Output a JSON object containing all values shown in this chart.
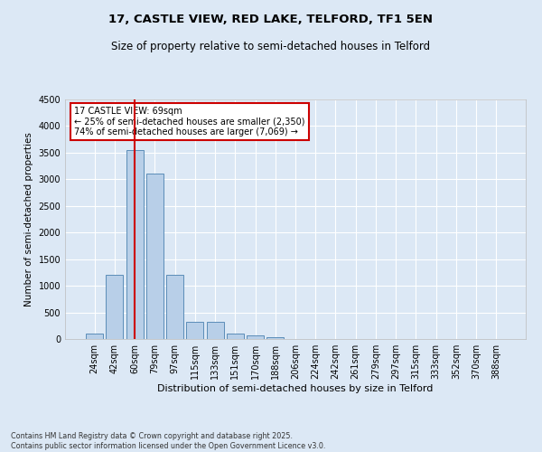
{
  "title_line1": "17, CASTLE VIEW, RED LAKE, TELFORD, TF1 5EN",
  "title_line2": "Size of property relative to semi-detached houses in Telford",
  "xlabel": "Distribution of semi-detached houses by size in Telford",
  "ylabel": "Number of semi-detached properties",
  "categories": [
    "24sqm",
    "42sqm",
    "60sqm",
    "79sqm",
    "97sqm",
    "115sqm",
    "133sqm",
    "151sqm",
    "170sqm",
    "188sqm",
    "206sqm",
    "224sqm",
    "242sqm",
    "261sqm",
    "279sqm",
    "297sqm",
    "315sqm",
    "333sqm",
    "352sqm",
    "370sqm",
    "388sqm"
  ],
  "values": [
    100,
    1200,
    3550,
    3100,
    1200,
    330,
    330,
    110,
    75,
    30,
    5,
    0,
    0,
    0,
    0,
    0,
    0,
    0,
    0,
    0,
    0
  ],
  "bar_color": "#b8cfe8",
  "bar_edge_color": "#5b8db8",
  "vline_x_index": 2,
  "vline_color": "#cc0000",
  "annotation_text": "17 CASTLE VIEW: 69sqm\n← 25% of semi-detached houses are smaller (2,350)\n74% of semi-detached houses are larger (7,069) →",
  "annotation_box_color": "#ffffff",
  "annotation_box_edge": "#cc0000",
  "ylim": [
    0,
    4500
  ],
  "yticks": [
    0,
    500,
    1000,
    1500,
    2000,
    2500,
    3000,
    3500,
    4000,
    4500
  ],
  "footer_line1": "Contains HM Land Registry data © Crown copyright and database right 2025.",
  "footer_line2": "Contains public sector information licensed under the Open Government Licence v3.0.",
  "bg_color": "#dce8f5",
  "plot_bg_color": "#dce8f5",
  "title1_fontsize": 9.5,
  "title2_fontsize": 8.5,
  "xlabel_fontsize": 8,
  "ylabel_fontsize": 7.5,
  "tick_fontsize": 7,
  "footer_fontsize": 5.8
}
